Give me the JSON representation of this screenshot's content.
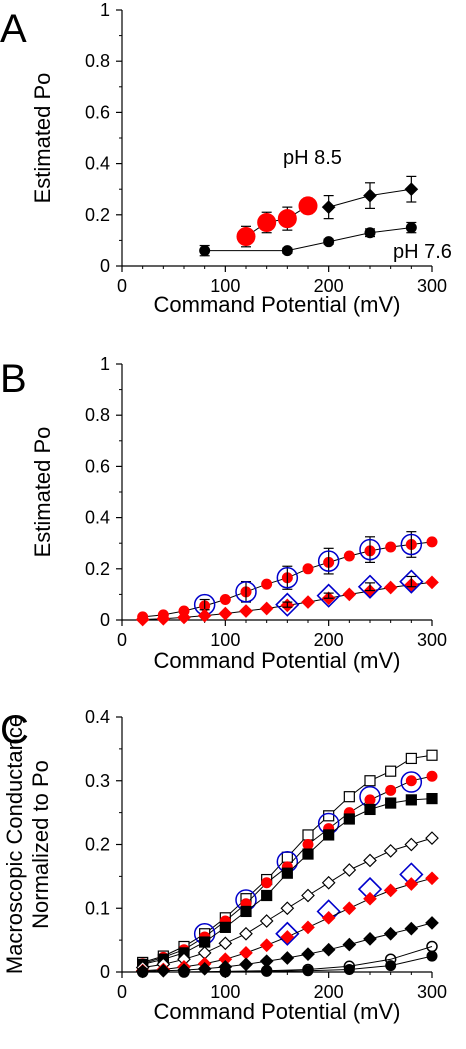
{
  "chart_data": [
    {
      "type": "scatter",
      "panel_label": "A",
      "xlabel": "Command Potential (mV)",
      "ylabel": "Estimated Po",
      "xlim": [
        0,
        300
      ],
      "ylim": [
        0,
        1
      ],
      "xticks": [
        "0",
        "100",
        "200",
        "300"
      ],
      "yticks": [
        "0",
        "0.2",
        "0.4",
        "0.6",
        "0.8",
        "1"
      ],
      "annotations": [
        "pH 8.5",
        "pH 7.6"
      ],
      "series": [
        {
          "name": "pH 8.5",
          "marker": "diamond",
          "color": "#000000",
          "line": true,
          "x": [
            200,
            240,
            280
          ],
          "y": [
            0.23,
            0.275,
            0.3
          ],
          "err": [
            0.045,
            0.05,
            0.05
          ]
        },
        {
          "marker": "circle-large",
          "color": "#ff0000",
          "line": true,
          "x": [
            120,
            140,
            160,
            180
          ],
          "y": [
            0.115,
            0.17,
            0.185,
            0.235
          ],
          "err": [
            0.04,
            0.04,
            0.045,
            0.03
          ]
        },
        {
          "name": "pH 7.6",
          "marker": "circle",
          "color": "#000000",
          "line": true,
          "x": [
            80,
            160,
            200,
            240,
            280
          ],
          "y": [
            0.06,
            0.06,
            0.095,
            0.13,
            0.15
          ],
          "err": [
            0.02,
            0.01,
            0.01,
            0.015,
            0.02
          ]
        }
      ]
    },
    {
      "type": "scatter",
      "panel_label": "B",
      "xlabel": "Command Potential (mV)",
      "ylabel": "Estimated Po",
      "xlim": [
        0,
        300
      ],
      "ylim": [
        0,
        1
      ],
      "xticks": [
        "0",
        "100",
        "200",
        "300"
      ],
      "yticks": [
        "0",
        "0.2",
        "0.4",
        "0.6",
        "0.8",
        "1"
      ],
      "series": [
        {
          "marker": "circle",
          "color": "#ff0000",
          "line": true,
          "x": [
            20,
            40,
            60,
            80,
            100,
            120,
            140,
            160,
            180,
            200,
            220,
            240,
            260,
            280,
            300
          ],
          "y": [
            0.012,
            0.02,
            0.035,
            0.055,
            0.08,
            0.11,
            0.14,
            0.165,
            0.2,
            0.225,
            0.25,
            0.27,
            0.285,
            0.295,
            0.305
          ]
        },
        {
          "marker": "open-circle-large",
          "color": "#0000cc",
          "line": false,
          "x": [
            80,
            120,
            160,
            200,
            240,
            280
          ],
          "y": [
            0.06,
            0.11,
            0.165,
            0.23,
            0.275,
            0.295
          ],
          "err": [
            0.02,
            0.04,
            0.045,
            0.05,
            0.05,
            0.05
          ]
        },
        {
          "marker": "diamond",
          "color": "#ff0000",
          "line": true,
          "x": [
            20,
            40,
            60,
            80,
            100,
            120,
            140,
            160,
            180,
            200,
            220,
            240,
            260,
            280,
            300
          ],
          "y": [
            0.002,
            0.005,
            0.01,
            0.017,
            0.025,
            0.035,
            0.045,
            0.057,
            0.07,
            0.085,
            0.1,
            0.113,
            0.127,
            0.138,
            0.147
          ]
        },
        {
          "marker": "open-diamond-large",
          "color": "#0000cc",
          "line": false,
          "x": [
            160,
            200,
            240,
            280
          ],
          "y": [
            0.06,
            0.095,
            0.13,
            0.15
          ],
          "err": [
            0.01,
            0.01,
            0.015,
            0.02
          ]
        }
      ]
    },
    {
      "type": "scatter",
      "panel_label": "C",
      "xlabel": "Command Potential (mV)",
      "ylabel_lines": [
        "Macroscopic Conductance",
        "Normalized to Po"
      ],
      "xlim": [
        0,
        300
      ],
      "ylim": [
        0,
        0.4
      ],
      "xticks": [
        "0",
        "100",
        "200",
        "300"
      ],
      "yticks": [
        "0",
        "0.1",
        "0.2",
        "0.3",
        "0.4"
      ],
      "series": [
        {
          "marker": "open-square",
          "color": "#000000",
          "line": true,
          "x": [
            20,
            40,
            60,
            80,
            100,
            120,
            140,
            160,
            180,
            200,
            220,
            240,
            260,
            280,
            300
          ],
          "y": [
            0.015,
            0.025,
            0.04,
            0.06,
            0.085,
            0.115,
            0.145,
            0.18,
            0.215,
            0.245,
            0.275,
            0.3,
            0.315,
            0.335,
            0.34
          ]
        },
        {
          "marker": "circle",
          "color": "#ff0000",
          "line": true,
          "x": [
            20,
            40,
            60,
            80,
            100,
            120,
            140,
            160,
            180,
            200,
            220,
            240,
            260,
            280,
            300
          ],
          "y": [
            0.013,
            0.023,
            0.035,
            0.055,
            0.08,
            0.107,
            0.14,
            0.165,
            0.2,
            0.225,
            0.25,
            0.27,
            0.285,
            0.3,
            0.307
          ]
        },
        {
          "marker": "open-circle-large",
          "color": "#0000cc",
          "line": false,
          "x": [
            80,
            120,
            160,
            200,
            240,
            280
          ],
          "y": [
            0.06,
            0.113,
            0.173,
            0.233,
            0.275,
            0.298
          ]
        },
        {
          "marker": "square",
          "color": "#000000",
          "line": true,
          "x": [
            20,
            40,
            60,
            80,
            100,
            120,
            140,
            160,
            180,
            200,
            220,
            240,
            260,
            280,
            300
          ],
          "y": [
            0.012,
            0.02,
            0.03,
            0.047,
            0.07,
            0.095,
            0.12,
            0.155,
            0.185,
            0.215,
            0.24,
            0.255,
            0.265,
            0.27,
            0.272
          ]
        },
        {
          "marker": "open-diamond",
          "color": "#000000",
          "line": true,
          "x": [
            20,
            40,
            60,
            80,
            100,
            120,
            140,
            160,
            180,
            200,
            220,
            240,
            260,
            280,
            300
          ],
          "y": [
            0.007,
            0.012,
            0.02,
            0.03,
            0.045,
            0.06,
            0.08,
            0.1,
            0.12,
            0.14,
            0.16,
            0.175,
            0.19,
            0.2,
            0.21
          ]
        },
        {
          "marker": "open-diamond-large",
          "color": "#0000cc",
          "line": false,
          "x": [
            160,
            200,
            240,
            280
          ],
          "y": [
            0.06,
            0.095,
            0.13,
            0.153
          ]
        },
        {
          "marker": "diamond",
          "color": "#ff0000",
          "line": true,
          "x": [
            20,
            40,
            60,
            80,
            100,
            120,
            140,
            160,
            180,
            200,
            220,
            240,
            260,
            280,
            300
          ],
          "y": [
            0.002,
            0.004,
            0.008,
            0.013,
            0.02,
            0.03,
            0.042,
            0.055,
            0.07,
            0.085,
            0.1,
            0.115,
            0.128,
            0.138,
            0.147
          ]
        },
        {
          "marker": "diamond",
          "color": "#000000",
          "line": true,
          "x": [
            20,
            40,
            60,
            80,
            100,
            120,
            140,
            160,
            180,
            200,
            220,
            240,
            260,
            280,
            300
          ],
          "y": [
            0.001,
            0.002,
            0.003,
            0.005,
            0.008,
            0.012,
            0.017,
            0.022,
            0.028,
            0.035,
            0.043,
            0.052,
            0.06,
            0.068,
            0.077
          ]
        },
        {
          "marker": "open-circle",
          "color": "#000000",
          "line": true,
          "x": [
            20,
            60,
            100,
            140,
            180,
            220,
            260,
            300
          ],
          "y": [
            0.0,
            0.0,
            0.001,
            0.002,
            0.004,
            0.009,
            0.02,
            0.04
          ]
        },
        {
          "marker": "circle",
          "color": "#000000",
          "line": true,
          "x": [
            20,
            60,
            100,
            140,
            180,
            220,
            260,
            300
          ],
          "y": [
            0.0,
            0.0,
            0.0,
            0.001,
            0.002,
            0.004,
            0.01,
            0.025
          ]
        }
      ]
    }
  ]
}
